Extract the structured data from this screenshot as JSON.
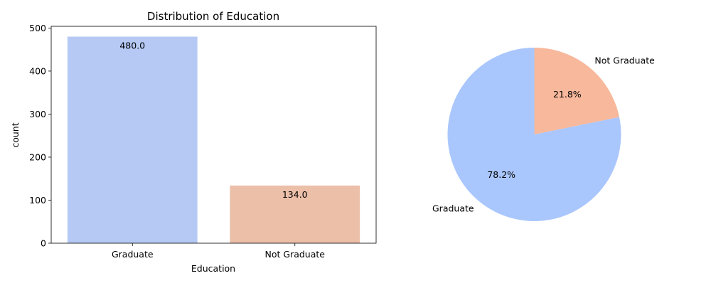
{
  "chart_data": [
    {
      "type": "bar",
      "title": "Distribution of Education",
      "xlabel": "Education",
      "ylabel": "count",
      "categories": [
        "Graduate",
        "Not Graduate"
      ],
      "values": [
        480,
        134
      ],
      "data_labels": [
        "480.0",
        "134.0"
      ],
      "colors": [
        "#b5c9f4",
        "#ecbfa9"
      ],
      "ylim": [
        0,
        504
      ],
      "yticks": [
        0,
        100,
        200,
        300,
        400,
        500
      ],
      "grid": false
    },
    {
      "type": "pie",
      "labels": [
        "Graduate",
        "Not Graduate"
      ],
      "values": [
        78.2,
        21.8
      ],
      "pct_labels": [
        "78.2%",
        "21.8%"
      ],
      "colors": [
        "#aac7fd",
        "#f7b89c"
      ]
    }
  ]
}
